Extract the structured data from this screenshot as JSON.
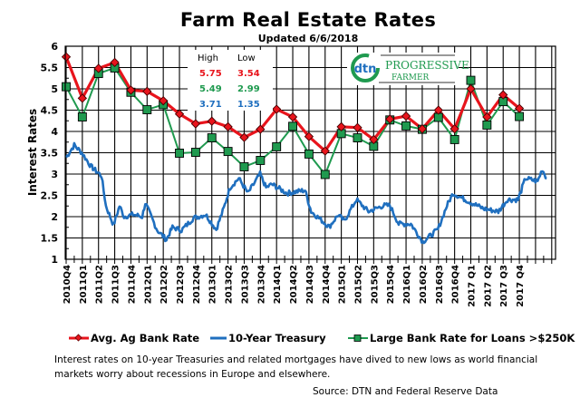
{
  "title": "Farm Real Estate Rates",
  "updated": "Updated 6/6/2018",
  "logo": {
    "mark": "dtn",
    "text_line1": "PROGRESSIVE",
    "text_line2": "FARMER"
  },
  "highlow": {
    "high_label": "High",
    "low_label": "Low",
    "rows": [
      {
        "high": "5.75",
        "low": "3.54",
        "color": "#e8141c"
      },
      {
        "high": "5.49",
        "low": "2.99",
        "color": "#1f9a4f"
      },
      {
        "high": "3.71",
        "low": "1.35",
        "color": "#1f6fbf"
      }
    ]
  },
  "chart_data": {
    "type": "line",
    "title": "Farm Real Estate Rates",
    "xlabel": "",
    "ylabel": "Interest Rates",
    "ylim": [
      1,
      6
    ],
    "yticks": [
      "1",
      "1.5",
      "2",
      "2.5",
      "3",
      "3.5",
      "4",
      "4.5",
      "5",
      "5.5",
      "6"
    ],
    "grid": true,
    "legend_position": "bottom",
    "categories": [
      "2010Q4",
      "2011Q1",
      "2011Q2",
      "2011Q3",
      "2011Q4",
      "2012Q1",
      "2012Q2",
      "2012Q3",
      "2012Q4",
      "2013Q1",
      "2013Q2",
      "2013Q3",
      "2013Q4",
      "2014Q1",
      "2014Q2",
      "2014Q3",
      "2014Q4",
      "2015Q1",
      "2015Q2",
      "2015Q3",
      "2015Q4",
      "2016Q1",
      "2016Q2",
      "2016Q3",
      "2016Q4",
      "2017 Q1",
      "2017 Q2",
      "2017 Q3",
      "2017 Q4"
    ],
    "series": [
      {
        "name": "Avg. Ag Bank Rate",
        "color": "#e8141c",
        "marker": "diamond",
        "values": [
          5.75,
          4.78,
          5.48,
          5.62,
          4.97,
          4.94,
          4.72,
          4.41,
          4.18,
          4.24,
          4.11,
          3.86,
          4.05,
          4.52,
          4.34,
          3.88,
          3.54,
          4.11,
          4.09,
          3.81,
          4.29,
          4.36,
          4.06,
          4.5,
          4.06,
          5.0,
          4.34,
          4.86,
          4.54
        ]
      },
      {
        "name": "10-Year Treasury",
        "color": "#1f6fbf",
        "marker": "none",
        "x": [
          0,
          0.5,
          0.97,
          1.53,
          2.18,
          2.46,
          2.93,
          3.3,
          3.58,
          4.14,
          4.7,
          4.89,
          5.63,
          6.19,
          6.57,
          7.13,
          7.87,
          8.62,
          9.27,
          9.74,
          10.11,
          10.67,
          11.23,
          11.98,
          12.35,
          12.71,
          13.64,
          14.76,
          15.14,
          16.25,
          16.8,
          17.18,
          17.93,
          18.68,
          19.6,
          20,
          20.55,
          21.3,
          22.04,
          22.97,
          23.53,
          23.9,
          24.65,
          25.77,
          26.7,
          27.26,
          27.92,
          28.38,
          29.13,
          29.41,
          29.69
        ],
        "values": [
          3.39,
          3.68,
          3.5,
          3.18,
          2.96,
          2.25,
          1.8,
          2.25,
          2.0,
          2.05,
          2.0,
          2.32,
          1.68,
          1.46,
          1.75,
          1.68,
          1.97,
          2.05,
          1.7,
          2.2,
          2.68,
          2.9,
          2.55,
          3.0,
          2.68,
          2.76,
          2.55,
          2.62,
          2.12,
          1.76,
          2.04,
          1.9,
          2.4,
          2.12,
          2.26,
          2.26,
          1.83,
          1.83,
          1.41,
          1.7,
          2.26,
          2.55,
          2.4,
          2.19,
          2.12,
          2.4,
          2.4,
          2.9,
          2.83,
          3.11,
          2.9
        ]
      },
      {
        "name": "Large Bank Rate for Loans >$250K",
        "color": "#1f9a4f",
        "marker": "square",
        "values": [
          5.05,
          4.34,
          5.36,
          5.49,
          4.92,
          4.51,
          4.63,
          3.49,
          3.51,
          3.85,
          3.53,
          3.17,
          3.32,
          3.64,
          4.12,
          3.47,
          2.99,
          3.95,
          3.85,
          3.65,
          4.27,
          4.13,
          4.05,
          4.33,
          3.81,
          5.2,
          4.15,
          4.7,
          4.35
        ]
      }
    ]
  },
  "legend": [
    {
      "label": "Avg. Ag Bank Rate"
    },
    {
      "label": "10-Year Treasury"
    },
    {
      "label": "Large Bank Rate for Loans >$250K"
    }
  ],
  "caption": "Interest rates on 10-year Treasuries and related mortgages have dived to new lows as world financial markets worry about recessions in Europe and elsewhere.",
  "source": "Source: DTN  and Federal Reserve Data"
}
